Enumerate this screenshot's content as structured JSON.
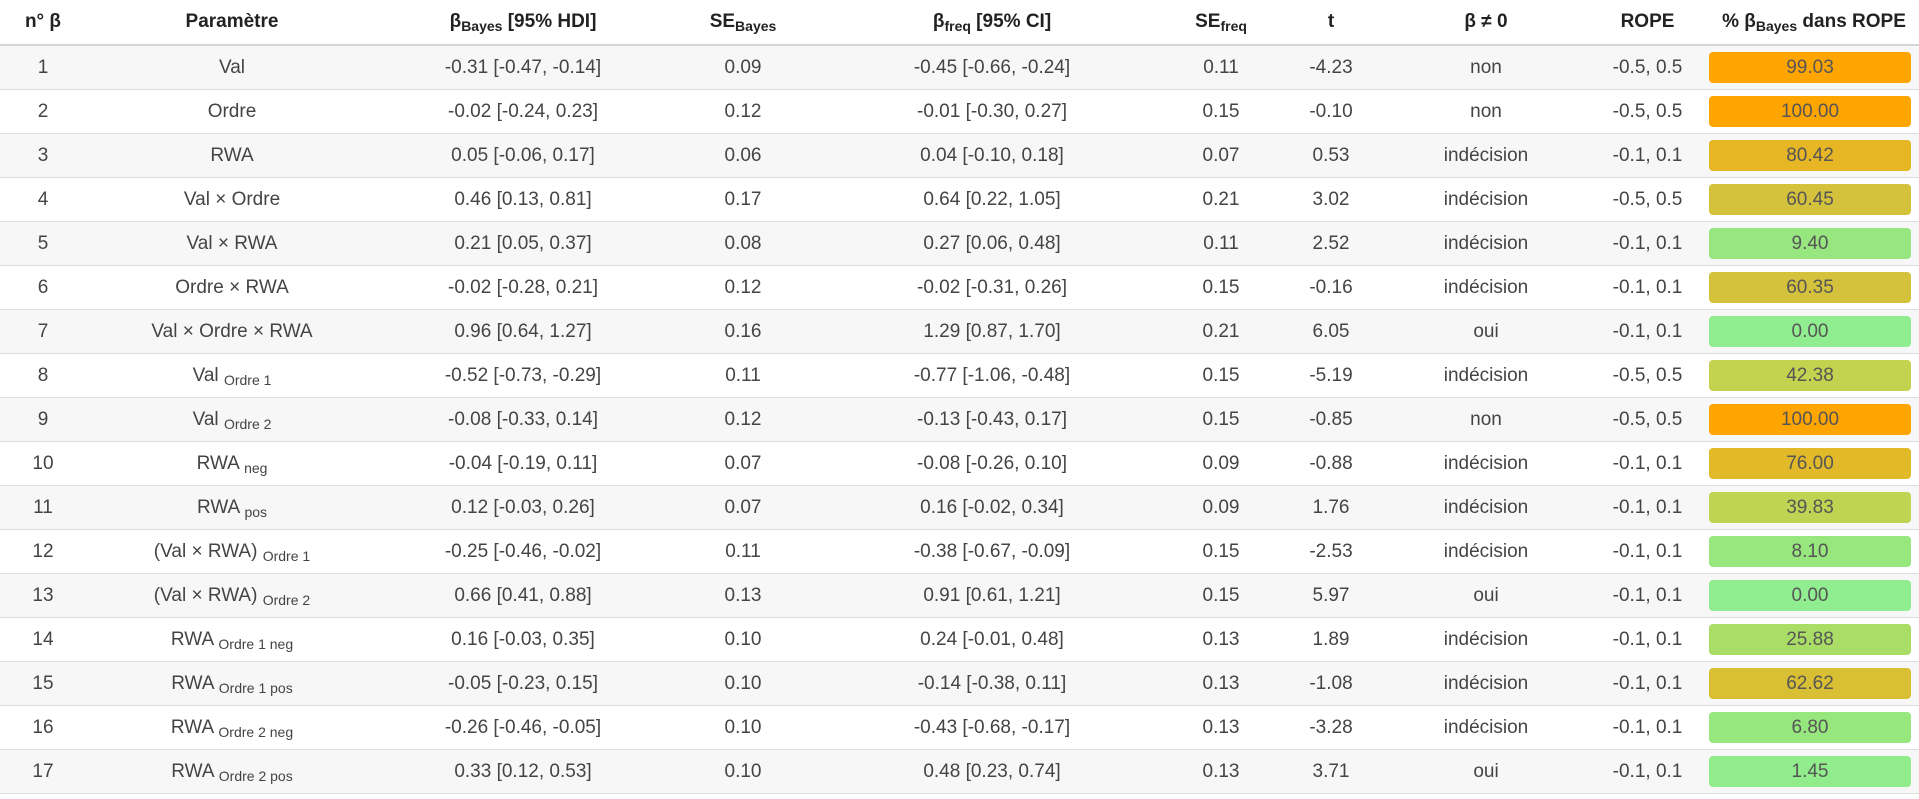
{
  "headers": {
    "n": "n° β",
    "param": "Paramètre",
    "bayes_base": "β",
    "bayes_sub": "Bayes",
    "bayes_tail": " [95% HDI]",
    "se_bayes_base": "SE",
    "se_bayes_sub": "Bayes",
    "freq_base": "β",
    "freq_sub": "freq",
    "freq_tail": " [95% CI]",
    "se_freq_base": "SE",
    "se_freq_sub": "freq",
    "t": "t",
    "neq": "β ≠ 0",
    "rope": "ROPE",
    "pct_pre": "% β",
    "pct_sub": "Bayes",
    "pct_tail": " dans ROPE"
  },
  "rows": [
    {
      "n": "1",
      "param": "Val",
      "param_sub": "",
      "bayes": "-0.31 [-0.47, -0.14]",
      "se_bayes": "0.09",
      "freq": "-0.45 [-0.66, -0.24]",
      "se_freq": "0.11",
      "t": "-4.23",
      "neq": "non",
      "rope": "-0.5, 0.5",
      "pct": "99.03",
      "pct_value": 99.03,
      "bar_color": "#ffa500"
    },
    {
      "n": "2",
      "param": "Ordre",
      "param_sub": "",
      "bayes": "-0.02 [-0.24, 0.23]",
      "se_bayes": "0.12",
      "freq": "-0.01 [-0.30, 0.27]",
      "se_freq": "0.15",
      "t": "-0.10",
      "neq": "non",
      "rope": "-0.5, 0.5",
      "pct": "100.00",
      "pct_value": 100.0,
      "bar_color": "#ffa500"
    },
    {
      "n": "3",
      "param": "RWA",
      "param_sub": "",
      "bayes": "0.05 [-0.06, 0.17]",
      "se_bayes": "0.06",
      "freq": "0.04 [-0.10, 0.18]",
      "se_freq": "0.07",
      "t": "0.53",
      "neq": "indécision",
      "rope": "-0.1, 0.1",
      "pct": "80.42",
      "pct_value": 80.42,
      "bar_color": "#e6b624"
    },
    {
      "n": "4",
      "param": "Val × Ordre",
      "param_sub": "",
      "bayes": "0.46 [0.13, 0.81]",
      "se_bayes": "0.17",
      "freq": "0.64 [0.22, 1.05]",
      "se_freq": "0.21",
      "t": "3.02",
      "neq": "indécision",
      "rope": "-0.5, 0.5",
      "pct": "60.45",
      "pct_value": 60.45,
      "bar_color": "#d5c23c"
    },
    {
      "n": "5",
      "param": "Val × RWA",
      "param_sub": "",
      "bayes": "0.21 [0.05, 0.37]",
      "se_bayes": "0.08",
      "freq": "0.27 [0.06, 0.48]",
      "se_freq": "0.11",
      "t": "2.52",
      "neq": "indécision",
      "rope": "-0.1, 0.1",
      "pct": "9.40",
      "pct_value": 9.4,
      "bar_color": "#98e680"
    },
    {
      "n": "6",
      "param": "Ordre × RWA",
      "param_sub": "",
      "bayes": "-0.02 [-0.28, 0.21]",
      "se_bayes": "0.12",
      "freq": "-0.02 [-0.31, 0.26]",
      "se_freq": "0.15",
      "t": "-0.16",
      "neq": "indécision",
      "rope": "-0.1, 0.1",
      "pct": "60.35",
      "pct_value": 60.35,
      "bar_color": "#d5c23c"
    },
    {
      "n": "7",
      "param": "Val × Ordre × RWA",
      "param_sub": "",
      "bayes": "0.96 [0.64, 1.27]",
      "se_bayes": "0.16",
      "freq": "1.29 [0.87, 1.70]",
      "se_freq": "0.21",
      "t": "6.05",
      "neq": "oui",
      "rope": "-0.1, 0.1",
      "pct": "0.00",
      "pct_value": 0.0,
      "bar_color": "#90ee90"
    },
    {
      "n": "8",
      "param": "Val",
      "param_sub": "Ordre 1",
      "bayes": "-0.52 [-0.73, -0.29]",
      "se_bayes": "0.11",
      "freq": "-0.77 [-1.06, -0.48]",
      "se_freq": "0.15",
      "t": "-5.19",
      "neq": "indécision",
      "rope": "-0.5, 0.5",
      "pct": "42.38",
      "pct_value": 42.38,
      "bar_color": "#c3d24f"
    },
    {
      "n": "9",
      "param": "Val",
      "param_sub": "Ordre 2",
      "bayes": "-0.08 [-0.33, 0.14]",
      "se_bayes": "0.12",
      "freq": "-0.13 [-0.43, 0.17]",
      "se_freq": "0.15",
      "t": "-0.85",
      "neq": "non",
      "rope": "-0.5, 0.5",
      "pct": "100.00",
      "pct_value": 100.0,
      "bar_color": "#ffa500"
    },
    {
      "n": "10",
      "param": "RWA",
      "param_sub": "neg",
      "bayes": "-0.04 [-0.19, 0.11]",
      "se_bayes": "0.07",
      "freq": "-0.08 [-0.26, 0.10]",
      "se_freq": "0.09",
      "t": "-0.88",
      "neq": "indécision",
      "rope": "-0.1, 0.1",
      "pct": "76.00",
      "pct_value": 76.0,
      "bar_color": "#e2b928"
    },
    {
      "n": "11",
      "param": "RWA",
      "param_sub": "pos",
      "bayes": "0.12 [-0.03, 0.26]",
      "se_bayes": "0.07",
      "freq": "0.16 [-0.02, 0.34]",
      "se_freq": "0.09",
      "t": "1.76",
      "neq": "indécision",
      "rope": "-0.1, 0.1",
      "pct": "39.83",
      "pct_value": 39.83,
      "bar_color": "#bfd453"
    },
    {
      "n": "12",
      "param": "(Val × RWA)",
      "param_sub": "Ordre 1",
      "bayes": "-0.25 [-0.46, -0.02]",
      "se_bayes": "0.11",
      "freq": "-0.38 [-0.67, -0.09]",
      "se_freq": "0.15",
      "t": "-2.53",
      "neq": "indécision",
      "rope": "-0.1, 0.1",
      "pct": "8.10",
      "pct_value": 8.1,
      "bar_color": "#97e67e"
    },
    {
      "n": "13",
      "param": "(Val × RWA)",
      "param_sub": "Ordre 2",
      "bayes": "0.66 [0.41, 0.88]",
      "se_bayes": "0.13",
      "freq": "0.91 [0.61, 1.21]",
      "se_freq": "0.15",
      "t": "5.97",
      "neq": "oui",
      "rope": "-0.1, 0.1",
      "pct": "0.00",
      "pct_value": 0.0,
      "bar_color": "#90ee90"
    },
    {
      "n": "14",
      "param": "RWA",
      "param_sub": "Ordre 1 neg",
      "bayes": "0.16 [-0.03, 0.35]",
      "se_bayes": "0.10",
      "freq": "0.24 [-0.01, 0.48]",
      "se_freq": "0.13",
      "t": "1.89",
      "neq": "indécision",
      "rope": "-0.1, 0.1",
      "pct": "25.88",
      "pct_value": 25.88,
      "bar_color": "#a9dd66"
    },
    {
      "n": "15",
      "param": "RWA",
      "param_sub": "Ordre 1 pos",
      "bayes": "-0.05 [-0.23, 0.15]",
      "se_bayes": "0.10",
      "freq": "-0.14 [-0.38, 0.11]",
      "se_freq": "0.13",
      "t": "-1.08",
      "neq": "indécision",
      "rope": "-0.1, 0.1",
      "pct": "62.62",
      "pct_value": 62.62,
      "bar_color": "#d9bf33"
    },
    {
      "n": "16",
      "param": "RWA",
      "param_sub": "Ordre 2 neg",
      "bayes": "-0.26 [-0.46, -0.05]",
      "se_bayes": "0.10",
      "freq": "-0.43 [-0.68, -0.17]",
      "se_freq": "0.13",
      "t": "-3.28",
      "neq": "indécision",
      "rope": "-0.1, 0.1",
      "pct": "6.80",
      "pct_value": 6.8,
      "bar_color": "#96e77e"
    },
    {
      "n": "17",
      "param": "RWA",
      "param_sub": "Ordre 2 pos",
      "bayes": "0.33 [0.12, 0.53]",
      "se_bayes": "0.10",
      "freq": "0.48 [0.23, 0.74]",
      "se_freq": "0.13",
      "t": "3.71",
      "neq": "oui",
      "rope": "-0.1, 0.1",
      "pct": "1.45",
      "pct_value": 1.45,
      "bar_color": "#91ec8c"
    }
  ]
}
